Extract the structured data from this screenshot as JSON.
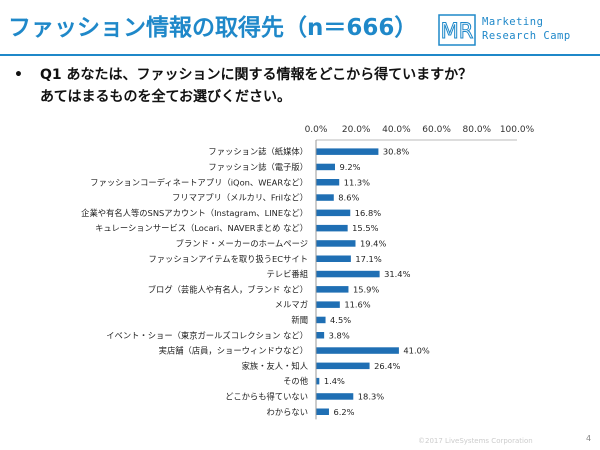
{
  "header": {
    "title": "ファッション情報の取得先（n＝666）",
    "logo_line1": "Marketing",
    "logo_line2": "Research Camp",
    "logo_mark_text": "MR",
    "accent_color": "#1f88c9"
  },
  "question": {
    "bullet": "•",
    "line1": "Q1 あなたは、ファッションに関する情報をどこから得ていますか？",
    "line2": "あてはまるものを全てお選びください。"
  },
  "chart_data": {
    "type": "bar",
    "orientation": "horizontal",
    "categories": [
      "ファッション誌（紙媒体）",
      "ファッション誌（電子版）",
      "ファッションコーディネートアプリ（iQon、WEARなど）",
      "フリマアプリ（メルカリ、Frilなど）",
      "企業や有名人等のSNSアカウント（Instagram、LINEなど）",
      "キュレーションサービス（Locari、NAVERまとめ など）",
      "ブランド・メーカーのホームページ",
      "ファッションアイテムを取り扱うECサイト",
      "テレビ番組",
      "ブログ（芸能人や有名人，ブランド など）",
      "メルマガ",
      "新聞",
      "イベント・ショー（東京ガールズコレクション など）",
      "実店舗（店員，ショーウィンドウなど）",
      "家族・友人・知人",
      "その他",
      "どこからも得ていない",
      "わからない"
    ],
    "values": [
      30.8,
      9.2,
      11.3,
      8.6,
      16.8,
      15.5,
      19.4,
      17.1,
      31.4,
      15.9,
      11.6,
      4.5,
      3.8,
      41.0,
      26.4,
      1.4,
      18.3,
      6.2
    ],
    "value_labels": [
      "30.8%",
      "9.2%",
      "11.3%",
      "8.6%",
      "16.8%",
      "15.5%",
      "19.4%",
      "17.1%",
      "31.4%",
      "15.9%",
      "11.6%",
      "4.5%",
      "3.8%",
      "41.0%",
      "26.4%",
      "1.4%",
      "18.3%",
      "6.2%"
    ],
    "xlim": [
      0,
      100
    ],
    "xticks": [
      "0.0%",
      "20.0%",
      "40.0%",
      "60.0%",
      "80.0%",
      "100.0%"
    ],
    "bar_color": "#1f6fb4",
    "grid": false
  },
  "footer": {
    "copyright": "©2017 LiveSystems Corporation",
    "page": "4"
  }
}
